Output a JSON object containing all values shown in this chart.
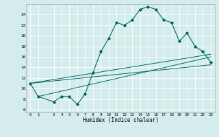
{
  "title": "",
  "xlabel": "Humidex (Indice chaleur)",
  "ylabel": "",
  "bg_color": "#d4edec",
  "grid_color": "#ffffff",
  "line_color": "#006666",
  "xlim": [
    -0.5,
    23.5
  ],
  "ylim": [
    5.5,
    26.0
  ],
  "xticks": [
    0,
    1,
    3,
    4,
    5,
    6,
    7,
    8,
    9,
    10,
    11,
    12,
    13,
    14,
    15,
    16,
    17,
    18,
    19,
    20,
    21,
    22,
    23
  ],
  "yticks": [
    6,
    8,
    10,
    12,
    14,
    16,
    18,
    20,
    22,
    24
  ],
  "main_x": [
    0,
    1,
    3,
    4,
    5,
    6,
    7,
    8,
    9,
    10,
    11,
    12,
    13,
    14,
    15,
    16,
    17,
    18,
    19,
    20,
    21,
    22,
    23
  ],
  "main_y": [
    11,
    8.5,
    7.5,
    8.5,
    8.5,
    7,
    9,
    13,
    17,
    19.5,
    22.5,
    22,
    23,
    25,
    25.5,
    25,
    23,
    22.5,
    19,
    20.5,
    18,
    17,
    15
  ],
  "line1_x": [
    0,
    23
  ],
  "line1_y": [
    11,
    14.5
  ],
  "line2_x": [
    0,
    23
  ],
  "line2_y": [
    11,
    16.5
  ],
  "line3_x": [
    1,
    23
  ],
  "line3_y": [
    8.5,
    16
  ]
}
